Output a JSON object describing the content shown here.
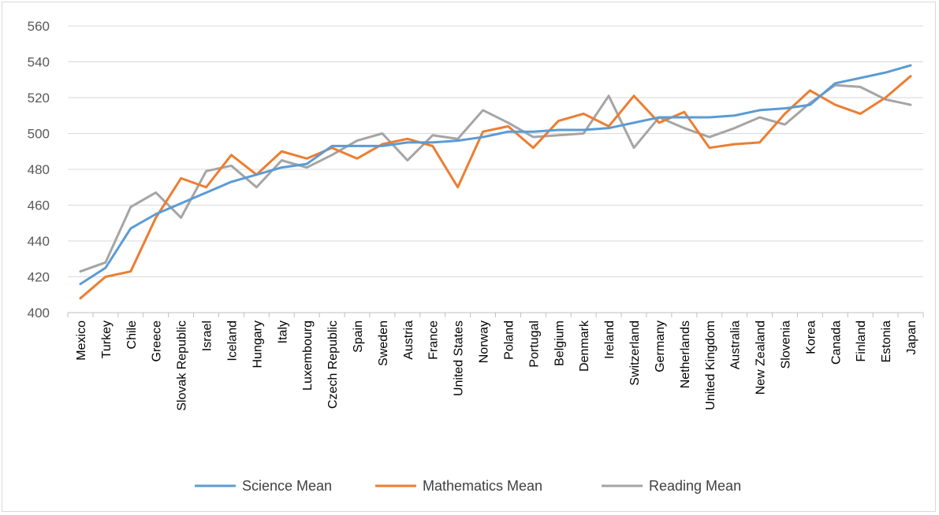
{
  "chart_data": {
    "type": "line",
    "categories": [
      "Mexico",
      "Turkey",
      "Chile",
      "Greece",
      "Slovak Republic",
      "Israel",
      "Iceland",
      "Hungary",
      "Italy",
      "Luxembourg",
      "Czech Republic",
      "Spain",
      "Sweden",
      "Austria",
      "France",
      "United  States",
      "Norway",
      "Poland",
      "Portugal",
      "Belgium",
      "Denmark",
      "Ireland",
      "Switzerland",
      "Germany",
      "Netherlands",
      "United  Kingdom",
      "Australia",
      "New Zealand",
      "Slovenia",
      "Korea",
      "Canada",
      "Finland",
      "Estonia",
      "Japan"
    ],
    "series": [
      {
        "name": "Science Mean",
        "color": "#5b9bd5",
        "values": [
          416,
          425,
          447,
          455,
          461,
          467,
          473,
          477,
          481,
          483,
          493,
          493,
          493,
          495,
          495,
          496,
          498,
          501,
          501,
          502,
          502,
          503,
          506,
          509,
          509,
          509,
          510,
          513,
          514,
          516,
          528,
          531,
          534,
          538
        ]
      },
      {
        "name": "Mathematics Mean",
        "color": "#ed7d31",
        "values": [
          408,
          420,
          423,
          453,
          475,
          470,
          488,
          477,
          490,
          486,
          492,
          486,
          494,
          497,
          493,
          470,
          501,
          504,
          492,
          507,
          511,
          504,
          521,
          506,
          512,
          492,
          494,
          495,
          511,
          524,
          516,
          511,
          520,
          532
        ]
      },
      {
        "name": "Reading Mean",
        "color": "#a5a5a5",
        "values": [
          423,
          428,
          459,
          467,
          453,
          479,
          482,
          470,
          485,
          481,
          488,
          496,
          500,
          485,
          499,
          497,
          513,
          506,
          498,
          499,
          500,
          521,
          492,
          509,
          503,
          498,
          503,
          509,
          505,
          517,
          527,
          526,
          519,
          516
        ]
      }
    ],
    "xlabel": "",
    "ylabel": "",
    "ylim": [
      400,
      560
    ],
    "yticks": [
      "400",
      "420",
      "440",
      "460",
      "480",
      "500",
      "520",
      "540",
      "560"
    ],
    "grid": "horizontal",
    "legend": "bottom"
  }
}
